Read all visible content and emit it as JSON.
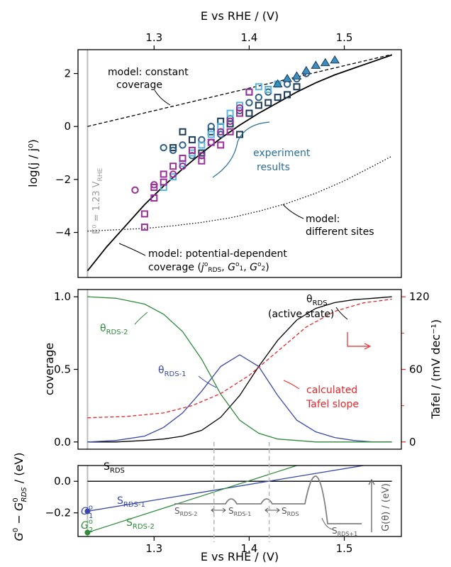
{
  "chart_data": [
    {
      "panel": "top",
      "type": "scatter",
      "x_axis_top": {
        "label": "E vs RHE / (V)",
        "range": [
          1.22,
          1.56
        ],
        "ticks": [
          "1.3",
          "1.4",
          "1.5"
        ]
      },
      "y_axis": {
        "label": "log(j / j⁰)",
        "range": [
          -5.7,
          2.9
        ],
        "ticks": [
          "2",
          "0",
          "−2",
          "−4"
        ]
      },
      "reference_line": {
        "x": 1.23,
        "label_main": "E⁰ = 1.23 V",
        "label_sub": "RHE"
      },
      "annotations": {
        "constant_coverage": [
          "model: constant",
          "coverage"
        ],
        "experiment": [
          "experiment",
          "results"
        ],
        "different_sites": [
          "model:",
          "different sites"
        ],
        "potential_dependent_line1": "model: potential-dependent",
        "potential_dependent_line2": [
          "coverage (",
          "j",
          "o",
          "RDS",
          ", ",
          "G",
          "o",
          "1",
          ", ",
          "G",
          "o",
          "2",
          ")"
        ]
      },
      "series": [
        {
          "id": "model_constant",
          "style": "dashed",
          "color": "#000000",
          "x": [
            1.23,
            1.55
          ],
          "y": [
            0.0,
            2.72
          ]
        },
        {
          "id": "model_potential_dependent",
          "style": "solid",
          "color": "#000000",
          "x": [
            1.23,
            1.25,
            1.27,
            1.29,
            1.31,
            1.33,
            1.35,
            1.37,
            1.39,
            1.41,
            1.43,
            1.45,
            1.47,
            1.49,
            1.51,
            1.53,
            1.55
          ],
          "y": [
            -5.45,
            -4.55,
            -3.75,
            -2.95,
            -2.25,
            -1.6,
            -1.0,
            -0.45,
            0.05,
            0.5,
            0.9,
            1.3,
            1.65,
            1.95,
            2.2,
            2.45,
            2.7
          ]
        },
        {
          "id": "model_different_sites",
          "style": "dotted",
          "color": "#000000",
          "x": [
            1.23,
            1.26,
            1.29,
            1.32,
            1.35,
            1.38,
            1.41,
            1.44,
            1.47,
            1.5,
            1.53,
            1.55
          ],
          "y": [
            -3.95,
            -3.9,
            -3.85,
            -3.75,
            -3.62,
            -3.45,
            -3.2,
            -2.9,
            -2.52,
            -2.05,
            -1.5,
            -1.12
          ]
        },
        {
          "id": "experiment_navy_squares",
          "marker": "square",
          "color": "#1b3a57",
          "x": [
            1.32,
            1.33,
            1.34,
            1.35,
            1.36,
            1.37,
            1.38,
            1.39,
            1.4,
            1.41,
            1.42,
            1.43,
            1.44,
            1.45
          ],
          "y": [
            -0.8,
            -0.2,
            -0.5,
            -1.0,
            -0.2,
            0.2,
            0.1,
            -0.3,
            0.5,
            0.8,
            0.9,
            1.1,
            1.2,
            1.5
          ]
        },
        {
          "id": "experiment_blue_circles",
          "marker": "circle",
          "color": "#2b5f8a",
          "x": [
            1.31,
            1.32,
            1.33,
            1.34,
            1.35,
            1.36,
            1.37,
            1.38,
            1.39,
            1.4,
            1.41,
            1.42,
            1.44,
            1.45,
            1.46
          ],
          "y": [
            -0.8,
            -0.9,
            -0.7,
            -1.1,
            -0.5,
            0.0,
            -0.3,
            0.3,
            0.6,
            0.9,
            1.1,
            1.3,
            1.6,
            1.8,
            2.0
          ]
        },
        {
          "id": "experiment_lightblue_squares",
          "marker": "square",
          "color": "#5ab4e0",
          "x": [
            1.31,
            1.32,
            1.33,
            1.34,
            1.35,
            1.36,
            1.37,
            1.38,
            1.39,
            1.4,
            1.41,
            1.42,
            1.43
          ],
          "y": [
            -2.3,
            -1.9,
            -1.4,
            -1.0,
            -0.7,
            -0.3,
            0.0,
            0.5,
            0.8,
            1.3,
            1.5,
            1.4,
            1.6
          ]
        },
        {
          "id": "experiment_teal_triangles",
          "marker": "triangle",
          "color": "#3a8fbf",
          "x": [
            1.43,
            1.44,
            1.45,
            1.46,
            1.47,
            1.48,
            1.49
          ],
          "y": [
            1.6,
            1.8,
            1.9,
            2.1,
            2.3,
            2.4,
            2.5
          ]
        },
        {
          "id": "experiment_purple",
          "marker": "square",
          "color": "#9b2f9a",
          "x": [
            1.29,
            1.29,
            1.3,
            1.3,
            1.31,
            1.31,
            1.32,
            1.33,
            1.34,
            1.35,
            1.36,
            1.37,
            1.38,
            1.39,
            1.4
          ],
          "y": [
            -3.8,
            -3.3,
            -2.7,
            -2.3,
            -1.8,
            -2.1,
            -1.5,
            -1.2,
            -0.9,
            -1.3,
            -0.6,
            -0.7,
            -0.2,
            0.5,
            1.3
          ]
        },
        {
          "id": "experiment_purple_circles",
          "marker": "circle",
          "color": "#9b2f9a",
          "x": [
            1.28,
            1.3,
            1.32,
            1.33,
            1.35,
            1.36,
            1.37,
            1.38,
            1.39
          ],
          "y": [
            -2.4,
            -2.2,
            -1.8,
            -1.5,
            -1.1,
            -0.6,
            -0.2,
            0.2,
            0.7
          ]
        }
      ]
    },
    {
      "panel": "middle",
      "type": "line",
      "x_range": [
        1.22,
        1.56
      ],
      "y_axis": {
        "label": "coverage",
        "range": [
          -0.05,
          1.05
        ],
        "ticks": [
          "1.0",
          "0.5",
          "0.0"
        ]
      },
      "y2_axis": {
        "label": "Tafel / (mV dec⁻¹)",
        "range": [
          0,
          120
        ],
        "ticks": [
          "120",
          "60",
          "0"
        ],
        "color": "#e8262a"
      },
      "vlines": [
        1.363,
        1.421
      ],
      "labels": {
        "theta_rds": "θ",
        "theta_rds_sub": "RDS",
        "active_state": "(active state)",
        "theta_rds1": "θ",
        "theta_rds1_sub": "RDS-1",
        "theta_rds2": "θ",
        "theta_rds2_sub": "RDS-2",
        "tafel": [
          "calculated",
          "Tafel slope"
        ]
      },
      "series": [
        {
          "id": "theta_RDS",
          "color": "#000000",
          "x": [
            1.23,
            1.26,
            1.29,
            1.31,
            1.33,
            1.35,
            1.37,
            1.39,
            1.41,
            1.43,
            1.45,
            1.47,
            1.49,
            1.51,
            1.53,
            1.55
          ],
          "y": [
            0.0,
            0.0,
            0.01,
            0.02,
            0.04,
            0.08,
            0.17,
            0.32,
            0.52,
            0.7,
            0.84,
            0.92,
            0.96,
            0.98,
            0.99,
            1.0
          ]
        },
        {
          "id": "theta_RDS-1",
          "color": "#3848a8",
          "x": [
            1.23,
            1.26,
            1.29,
            1.31,
            1.33,
            1.35,
            1.37,
            1.39,
            1.41,
            1.43,
            1.45,
            1.47,
            1.49,
            1.51,
            1.53,
            1.55
          ],
          "y": [
            0.0,
            0.01,
            0.04,
            0.1,
            0.2,
            0.35,
            0.52,
            0.6,
            0.52,
            0.32,
            0.15,
            0.07,
            0.03,
            0.01,
            0.0,
            0.0
          ]
        },
        {
          "id": "theta_RDS-2",
          "color": "#2e8b3a",
          "x": [
            1.23,
            1.26,
            1.29,
            1.31,
            1.33,
            1.35,
            1.37,
            1.39,
            1.41,
            1.43,
            1.45,
            1.47,
            1.49,
            1.51,
            1.53,
            1.55
          ],
          "y": [
            1.0,
            0.99,
            0.95,
            0.88,
            0.76,
            0.57,
            0.33,
            0.15,
            0.06,
            0.02,
            0.01,
            0.0,
            0.0,
            0.0,
            0.0,
            0.0
          ]
        },
        {
          "id": "tafel",
          "color": "#e8262a",
          "style": "dashed",
          "axis": "y2",
          "x": [
            1.23,
            1.27,
            1.31,
            1.34,
            1.37,
            1.4,
            1.43,
            1.46,
            1.49,
            1.52,
            1.55
          ],
          "y": [
            20,
            21,
            24,
            30,
            40,
            55,
            75,
            95,
            108,
            115,
            118
          ]
        }
      ]
    },
    {
      "panel": "bottom",
      "type": "line",
      "x_axis": {
        "label": "E vs RHE / (V)",
        "range": [
          1.22,
          1.56
        ],
        "ticks": [
          "1.3",
          "1.4",
          "1.5"
        ]
      },
      "y_axis": {
        "label": "G⁰ − G⁰RDS / (eV)",
        "range": [
          -0.35,
          0.1
        ],
        "ticks": [
          "0.0",
          "−0.2"
        ]
      },
      "labels": {
        "s_rds": "S",
        "s_rds_sub": "RDS",
        "s_rds1": "S",
        "s_rds1_sub": "RDS-1",
        "s_rds2": "S",
        "s_rds2_sub": "RDS-2",
        "g1": "G",
        "g1_sup": "o",
        "g1_sub": "1",
        "g2": "G",
        "g2_sup": "o",
        "g2_sub": "2"
      },
      "inset": {
        "labels": [
          "S",
          "RDS-2",
          "S",
          "RDS-1",
          "S",
          "RDS",
          "S",
          "RDS+1"
        ],
        "axis_label": "G(θ) / (eV)"
      },
      "series": [
        {
          "id": "S_RDS",
          "color": "#000000",
          "x": [
            1.23,
            1.55
          ],
          "y": [
            0.0,
            0.0
          ]
        },
        {
          "id": "S_RDS-1",
          "color": "#3848a8",
          "x": [
            1.23,
            1.52
          ],
          "y": [
            -0.19,
            0.1
          ]
        },
        {
          "id": "S_RDS-2",
          "color": "#2e8b3a",
          "x": [
            1.23,
            1.45
          ],
          "y": [
            -0.325,
            0.1
          ]
        }
      ],
      "points": [
        {
          "id": "G1",
          "x": 1.23,
          "y": -0.19,
          "color": "#3848a8"
        },
        {
          "id": "G2",
          "x": 1.23,
          "y": -0.325,
          "color": "#2e8b3a"
        }
      ]
    }
  ]
}
